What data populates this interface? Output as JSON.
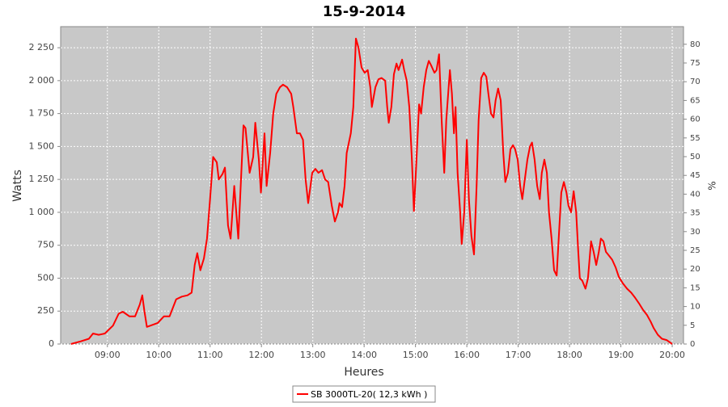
{
  "chart_data": {
    "type": "line",
    "title": "15-9-2014",
    "xlabel": "Heures",
    "ylabel": "Watts",
    "y2label": "%",
    "x": [
      8.29,
      8.48,
      8.64,
      8.72,
      8.83,
      8.95,
      9.11,
      9.22,
      9.3,
      9.43,
      9.54,
      9.63,
      9.68,
      9.72,
      9.77,
      9.84,
      9.98,
      10.1,
      10.21,
      10.34,
      10.45,
      10.56,
      10.64,
      10.7,
      10.75,
      10.81,
      10.88,
      10.94,
      11.0,
      11.06,
      11.13,
      11.17,
      11.24,
      11.29,
      11.35,
      11.4,
      11.47,
      11.55,
      11.65,
      11.69,
      11.77,
      11.84,
      11.88,
      11.95,
      11.99,
      12.06,
      12.1,
      12.17,
      12.23,
      12.29,
      12.36,
      12.42,
      12.5,
      12.58,
      12.62,
      12.69,
      12.75,
      12.81,
      12.86,
      12.91,
      12.99,
      13.05,
      13.11,
      13.18,
      13.24,
      13.3,
      13.37,
      13.43,
      13.49,
      13.52,
      13.57,
      13.62,
      13.66,
      13.74,
      13.79,
      13.84,
      13.89,
      13.95,
      14.01,
      14.07,
      14.12,
      14.15,
      14.22,
      14.28,
      14.34,
      14.41,
      14.45,
      14.48,
      14.53,
      14.58,
      14.63,
      14.67,
      14.74,
      14.78,
      14.83,
      14.88,
      14.93,
      14.97,
      15.02,
      15.07,
      15.11,
      15.16,
      15.21,
      15.26,
      15.3,
      15.37,
      15.41,
      15.46,
      15.51,
      15.56,
      15.6,
      15.67,
      15.71,
      15.75,
      15.78,
      15.82,
      15.87,
      15.9,
      15.95,
      16.0,
      16.04,
      16.09,
      16.14,
      16.19,
      16.23,
      16.28,
      16.33,
      16.38,
      16.42,
      16.47,
      16.52,
      16.56,
      16.61,
      16.66,
      16.71,
      16.75,
      16.8,
      16.85,
      16.9,
      16.94,
      16.99,
      17.04,
      17.08,
      17.13,
      17.18,
      17.23,
      17.27,
      17.32,
      17.37,
      17.42,
      17.46,
      17.51,
      17.56,
      17.6,
      17.65,
      17.7,
      17.75,
      17.79,
      17.84,
      17.89,
      17.94,
      17.98,
      18.03,
      18.08,
      18.13,
      18.17,
      18.2,
      18.25,
      18.31,
      18.36,
      18.42,
      18.47,
      18.52,
      18.57,
      18.61,
      18.66,
      18.71,
      18.77,
      18.83,
      18.9,
      18.96,
      19.04,
      19.12,
      19.2,
      19.28,
      19.35,
      19.43,
      19.51,
      19.58,
      19.64,
      19.72,
      19.8,
      19.89,
      20.0
    ],
    "series": [
      {
        "name": "SB 3000TL-20( 12,3 kWh )",
        "color": "#ff0000",
        "values": [
          0,
          20,
          40,
          80,
          70,
          80,
          140,
          230,
          245,
          210,
          210,
          300,
          370,
          250,
          130,
          140,
          160,
          210,
          210,
          340,
          360,
          370,
          390,
          600,
          690,
          560,
          650,
          800,
          1100,
          1420,
          1380,
          1250,
          1290,
          1340,
          900,
          800,
          1200,
          800,
          1660,
          1640,
          1300,
          1420,
          1680,
          1400,
          1150,
          1600,
          1200,
          1450,
          1750,
          1900,
          1950,
          1970,
          1950,
          1900,
          1800,
          1600,
          1600,
          1550,
          1250,
          1070,
          1300,
          1330,
          1300,
          1320,
          1250,
          1230,
          1050,
          930,
          1000,
          1070,
          1040,
          1200,
          1450,
          1600,
          1800,
          2320,
          2250,
          2100,
          2060,
          2080,
          1950,
          1800,
          1950,
          2010,
          2020,
          2000,
          1800,
          1680,
          1800,
          2050,
          2130,
          2080,
          2160,
          2080,
          2000,
          1800,
          1400,
          1010,
          1400,
          1820,
          1750,
          1950,
          2080,
          2150,
          2120,
          2060,
          2080,
          2200,
          1700,
          1300,
          1700,
          2080,
          1900,
          1600,
          1800,
          1300,
          1000,
          760,
          1000,
          1550,
          1100,
          820,
          680,
          1200,
          1700,
          2020,
          2060,
          2030,
          1900,
          1750,
          1720,
          1850,
          1940,
          1850,
          1450,
          1230,
          1300,
          1480,
          1510,
          1480,
          1400,
          1200,
          1100,
          1250,
          1400,
          1500,
          1530,
          1400,
          1200,
          1100,
          1300,
          1400,
          1300,
          1000,
          800,
          560,
          520,
          800,
          1150,
          1230,
          1150,
          1050,
          1000,
          1160,
          1000,
          700,
          500,
          480,
          420,
          500,
          780,
          700,
          600,
          700,
          800,
          780,
          700,
          670,
          640,
          580,
          510,
          460,
          420,
          390,
          350,
          310,
          260,
          220,
          170,
          120,
          70,
          40,
          30,
          0
        ]
      }
    ],
    "xlim": [
      8.09,
      20.22
    ],
    "xticks": [
      {
        "value": 9,
        "label": "09:00"
      },
      {
        "value": 10,
        "label": "10:00"
      },
      {
        "value": 11,
        "label": "11:00"
      },
      {
        "value": 12,
        "label": "12:00"
      },
      {
        "value": 13,
        "label": "13:00"
      },
      {
        "value": 14,
        "label": "14:00"
      },
      {
        "value": 15,
        "label": "15:00"
      },
      {
        "value": 16,
        "label": "16:00"
      },
      {
        "value": 17,
        "label": "17:00"
      },
      {
        "value": 18,
        "label": "18:00"
      },
      {
        "value": 19,
        "label": "19:00"
      },
      {
        "value": 20,
        "label": "20:00"
      }
    ],
    "ylim": [
      0,
      2410
    ],
    "yticks": [
      0,
      250,
      500,
      750,
      {
        "value": 1000,
        "label": "1 000"
      },
      {
        "value": 1250,
        "label": "1 250"
      },
      {
        "value": 1500,
        "label": "1 500"
      },
      {
        "value": 1750,
        "label": "1 750"
      },
      {
        "value": 2000,
        "label": "2 000"
      },
      {
        "value": 2250,
        "label": "2 250"
      }
    ],
    "y2lim": [
      0,
      84.7
    ],
    "y2ticks": [
      0,
      5,
      10,
      15,
      20,
      25,
      30,
      35,
      40,
      45,
      50,
      55,
      60,
      65,
      70,
      75,
      80
    ],
    "grid": true,
    "legend": "bottom"
  }
}
